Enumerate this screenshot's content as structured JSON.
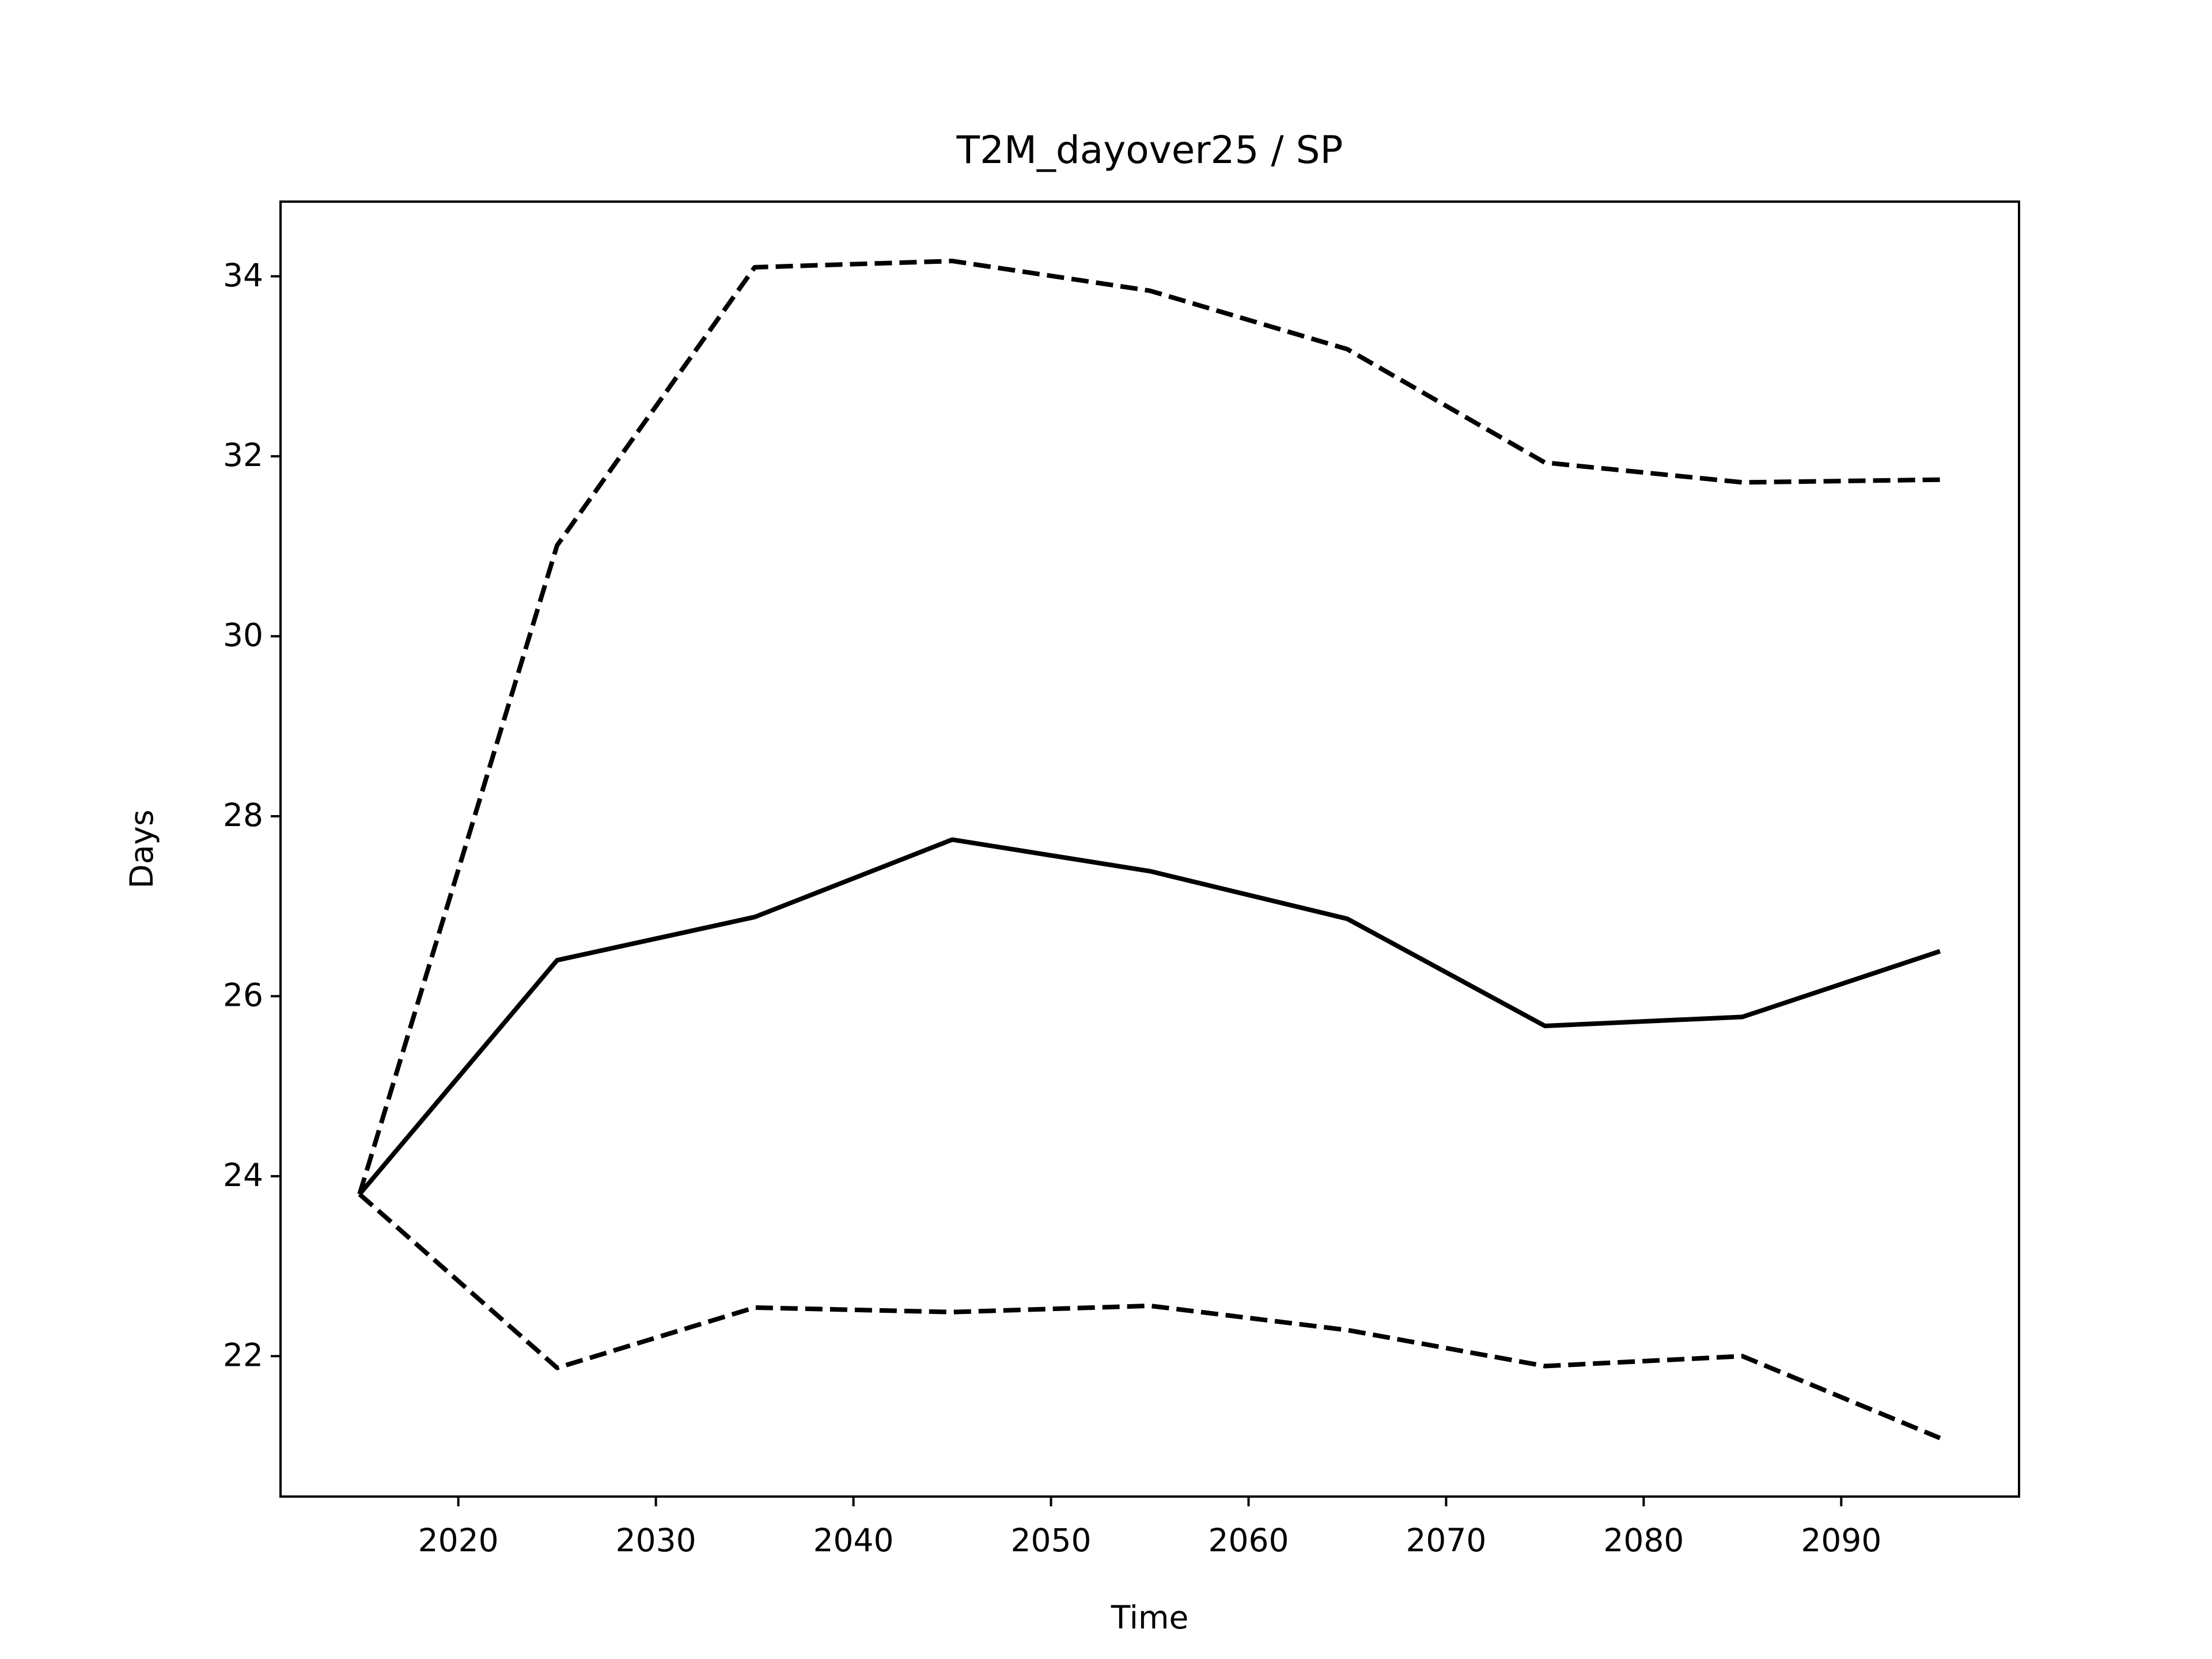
{
  "chart_data": {
    "type": "line",
    "title": "T2M_dayover25 / SP",
    "xlabel": "Time",
    "ylabel": "Days",
    "x": [
      2015,
      2025,
      2035,
      2045,
      2055,
      2065,
      2075,
      2085,
      2095
    ],
    "series": [
      {
        "color": "#000000",
        "linestyle": "solid",
        "values": [
          23.8,
          26.4,
          26.88,
          27.74,
          27.39,
          26.86,
          25.67,
          25.77,
          26.5
        ]
      },
      {
        "color": "#000000",
        "linestyle": "dashed",
        "values": [
          23.8,
          31.01,
          34.1,
          34.17,
          33.84,
          33.19,
          31.93,
          31.71,
          31.74
        ]
      },
      {
        "color": "#000000",
        "linestyle": "dashed",
        "values": [
          23.8,
          21.87,
          22.54,
          22.49,
          22.56,
          22.29,
          21.89,
          22.0,
          21.09
        ]
      }
    ],
    "xlim": [
      2011,
      2099
    ],
    "xticks": [
      2020,
      2030,
      2040,
      2050,
      2060,
      2070,
      2080,
      2090
    ],
    "ylim": [
      20.44,
      34.83
    ],
    "yticks": [
      22,
      24,
      26,
      28,
      30,
      32,
      34
    ],
    "grid": false
  }
}
